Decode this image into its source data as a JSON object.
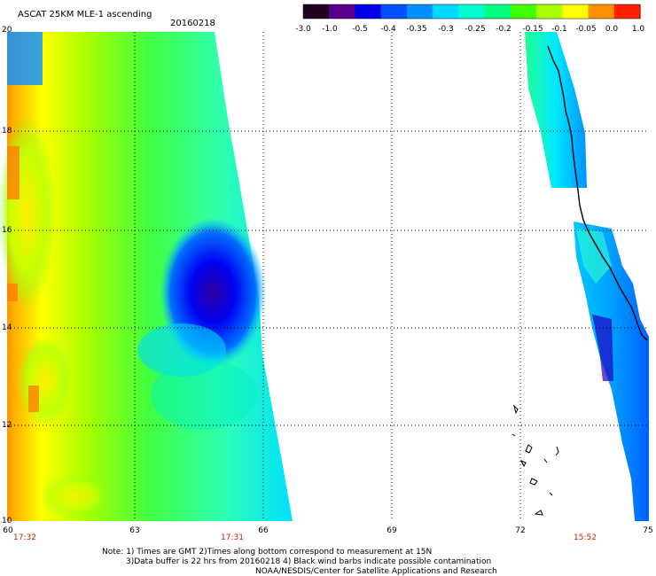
{
  "title": "ASCAT 25KM MLE-1 ascending",
  "date": "20160218",
  "colorbar": {
    "ticks": [
      "-3.0",
      "-1.0",
      "-0.5",
      "-0.4",
      "-0.35",
      "-0.3",
      "-0.25",
      "-0.2",
      "-0.15",
      "-0.1",
      "-0.05",
      "0.0",
      "1.0"
    ],
    "colors": [
      "#220022",
      "#5a0090",
      "#0000e8",
      "#0050ff",
      "#0090ff",
      "#00d8ff",
      "#00ffd0",
      "#00ff80",
      "#40ff00",
      "#a8ff00",
      "#ffff00",
      "#ff9000",
      "#ff2000"
    ]
  },
  "lat_labels": [
    "20",
    "18",
    "16",
    "14",
    "12",
    "10"
  ],
  "lon_labels": [
    "60",
    "63",
    "66",
    "69",
    "72",
    "75"
  ],
  "time_labels": [
    "17:32",
    "17:31",
    "15:52"
  ],
  "time_color": "#cc2200",
  "notes": [
    "Note: 1) Times are GMT 2)Times along bottom correspond to measurement at 15N",
    "3)Data buffer is 22 hrs from 20160218 4) Black wind barbs indicate possible contamination",
    "NOAA/NESDIS/Center for Satellite Applications and Research"
  ]
}
